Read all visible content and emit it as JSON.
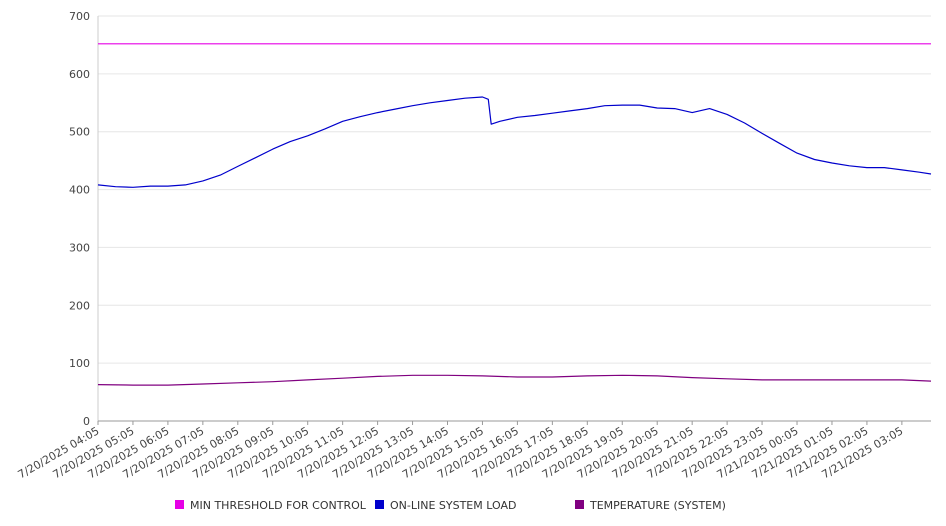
{
  "chart_data": {
    "type": "line",
    "title": "",
    "xlabel": "",
    "ylabel": "",
    "ylim": [
      0,
      700
    ],
    "yticks": [
      0,
      100,
      200,
      300,
      400,
      500,
      600,
      700
    ],
    "grid": true,
    "legend_position": "bottom",
    "x_range": [
      "7/20/2025 04:05",
      "7/21/2025 03:55"
    ],
    "x_tick_labels": [
      "7/20/2025 04:05",
      "7/20/2025 05:05",
      "7/20/2025 06:05",
      "7/20/2025 07:05",
      "7/20/2025 08:05",
      "7/20/2025 09:05",
      "7/20/2025 10:05",
      "7/20/2025 11:05",
      "7/20/2025 12:05",
      "7/20/2025 13:05",
      "7/20/2025 14:05",
      "7/20/2025 15:05",
      "7/20/2025 16:05",
      "7/20/2025 17:05",
      "7/20/2025 18:05",
      "7/20/2025 19:05",
      "7/20/2025 20:05",
      "7/20/2025 21:05",
      "7/20/2025 22:05",
      "7/20/2025 23:05",
      "7/21/2025 00:05",
      "7/21/2025 01:05",
      "7/21/2025 02:05",
      "7/21/2025 03:05"
    ],
    "series": [
      {
        "name": "MIN THRESHOLD FOR CONTROL",
        "color": "#e600e6",
        "points": [
          [
            "7/20/2025 04:05",
            652
          ],
          [
            "7/21/2025 03:55",
            652
          ]
        ]
      },
      {
        "name": "ON-LINE SYSTEM LOAD",
        "color": "#0000cc",
        "points": [
          [
            "7/20/2025 04:05",
            408
          ],
          [
            "7/20/2025 04:35",
            405
          ],
          [
            "7/20/2025 05:05",
            404
          ],
          [
            "7/20/2025 05:35",
            406
          ],
          [
            "7/20/2025 06:05",
            406
          ],
          [
            "7/20/2025 06:35",
            408
          ],
          [
            "7/20/2025 07:05",
            415
          ],
          [
            "7/20/2025 07:35",
            425
          ],
          [
            "7/20/2025 08:05",
            440
          ],
          [
            "7/20/2025 08:35",
            455
          ],
          [
            "7/20/2025 09:05",
            470
          ],
          [
            "7/20/2025 09:35",
            483
          ],
          [
            "7/20/2025 10:05",
            493
          ],
          [
            "7/20/2025 10:35",
            505
          ],
          [
            "7/20/2025 11:05",
            518
          ],
          [
            "7/20/2025 11:35",
            526
          ],
          [
            "7/20/2025 12:05",
            533
          ],
          [
            "7/20/2025 12:35",
            539
          ],
          [
            "7/20/2025 13:05",
            545
          ],
          [
            "7/20/2025 13:35",
            550
          ],
          [
            "7/20/2025 14:05",
            554
          ],
          [
            "7/20/2025 14:35",
            558
          ],
          [
            "7/20/2025 15:05",
            560
          ],
          [
            "7/20/2025 15:15",
            556
          ],
          [
            "7/20/2025 15:20",
            513
          ],
          [
            "7/20/2025 15:35",
            518
          ],
          [
            "7/20/2025 16:05",
            525
          ],
          [
            "7/20/2025 16:35",
            528
          ],
          [
            "7/20/2025 17:05",
            532
          ],
          [
            "7/20/2025 17:35",
            536
          ],
          [
            "7/20/2025 18:05",
            540
          ],
          [
            "7/20/2025 18:35",
            545
          ],
          [
            "7/20/2025 19:05",
            546
          ],
          [
            "7/20/2025 19:35",
            546
          ],
          [
            "7/20/2025 20:05",
            541
          ],
          [
            "7/20/2025 20:35",
            540
          ],
          [
            "7/20/2025 21:05",
            533
          ],
          [
            "7/20/2025 21:35",
            540
          ],
          [
            "7/20/2025 22:05",
            530
          ],
          [
            "7/20/2025 22:35",
            515
          ],
          [
            "7/20/2025 23:05",
            497
          ],
          [
            "7/20/2025 23:35",
            480
          ],
          [
            "7/21/2025 00:05",
            463
          ],
          [
            "7/21/2025 00:35",
            452
          ],
          [
            "7/21/2025 01:05",
            446
          ],
          [
            "7/21/2025 01:35",
            441
          ],
          [
            "7/21/2025 02:05",
            438
          ],
          [
            "7/21/2025 02:35",
            438
          ],
          [
            "7/21/2025 03:05",
            434
          ],
          [
            "7/21/2025 03:35",
            430
          ],
          [
            "7/21/2025 03:55",
            427
          ]
        ]
      },
      {
        "name": "TEMPERATURE (SYSTEM)",
        "color": "#800080",
        "points": [
          [
            "7/20/2025 04:05",
            63
          ],
          [
            "7/20/2025 05:05",
            62
          ],
          [
            "7/20/2025 06:05",
            62
          ],
          [
            "7/20/2025 07:05",
            64
          ],
          [
            "7/20/2025 08:05",
            66
          ],
          [
            "7/20/2025 09:05",
            68
          ],
          [
            "7/20/2025 10:05",
            71
          ],
          [
            "7/20/2025 11:05",
            74
          ],
          [
            "7/20/2025 12:05",
            77
          ],
          [
            "7/20/2025 13:05",
            79
          ],
          [
            "7/20/2025 14:05",
            79
          ],
          [
            "7/20/2025 15:05",
            78
          ],
          [
            "7/20/2025 16:05",
            76
          ],
          [
            "7/20/2025 17:05",
            76
          ],
          [
            "7/20/2025 18:05",
            78
          ],
          [
            "7/20/2025 19:05",
            79
          ],
          [
            "7/20/2025 20:05",
            78
          ],
          [
            "7/20/2025 21:05",
            75
          ],
          [
            "7/20/2025 22:05",
            73
          ],
          [
            "7/20/2025 23:05",
            71
          ],
          [
            "7/21/2025 00:05",
            71
          ],
          [
            "7/21/2025 01:05",
            71
          ],
          [
            "7/21/2025 02:05",
            71
          ],
          [
            "7/21/2025 03:05",
            71
          ],
          [
            "7/21/2025 03:55",
            69
          ]
        ]
      }
    ]
  }
}
